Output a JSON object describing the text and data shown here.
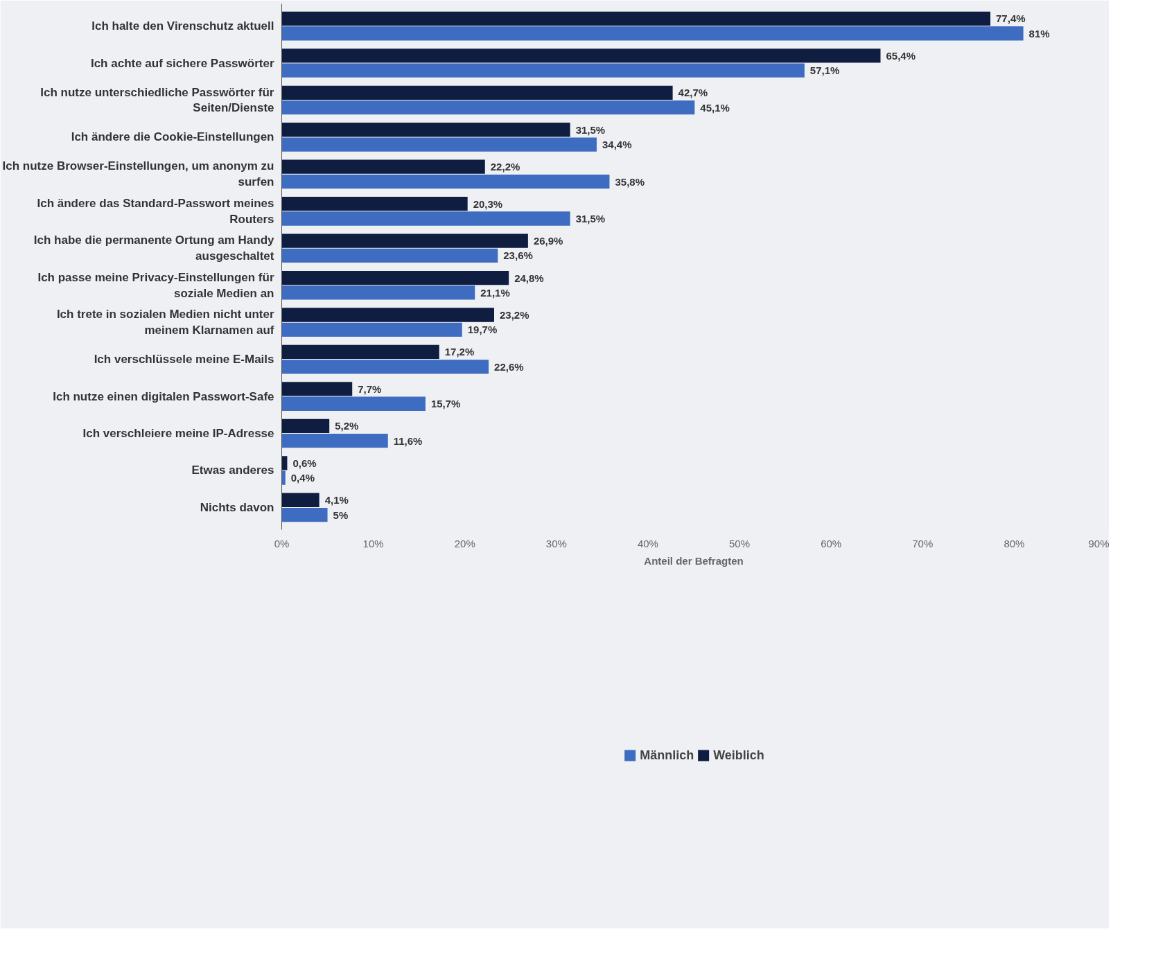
{
  "chart_data": {
    "type": "bar",
    "orientation": "horizontal",
    "xlabel": "Anteil der Befragten",
    "categories": [
      "Ich halte den Virenschutz aktuell",
      "Ich achte auf sichere Passwörter",
      "Ich nutze unterschiedliche Passwörter für Seiten/Dienste",
      "Ich ändere die Cookie-Einstellungen",
      "Ich nutze Browser-Einstellungen, um anonym zu surfen",
      "Ich ändere das Standard-Passwort meines Routers",
      "Ich habe die permanente Ortung am Handy ausgeschaltet",
      "Ich passe meine Privacy-Einstellungen für soziale Medien an",
      "Ich trete in sozialen Medien nicht unter meinem Klarnamen auf",
      "Ich verschlüssele meine E-Mails",
      "Ich nutze einen digitalen Passwort-Safe",
      "Ich verschleiere meine IP-Adresse",
      "Etwas anderes",
      "Nichts davon"
    ],
    "series": [
      {
        "name": "Männlich",
        "color": "#3d6cc0",
        "values": [
          81,
          57.1,
          45.1,
          34.4,
          35.8,
          31.5,
          23.6,
          21.1,
          19.7,
          22.6,
          15.7,
          11.6,
          0.4,
          5
        ],
        "value_labels": [
          "81%",
          "57,1%",
          "45,1%",
          "34,4%",
          "35,8%",
          "31,5%",
          "23,6%",
          "21,1%",
          "19,7%",
          "22,6%",
          "15,7%",
          "11,6%",
          "0,4%",
          "5%"
        ]
      },
      {
        "name": "Weiblich",
        "color": "#0e1d40",
        "values": [
          77.4,
          65.4,
          42.7,
          31.5,
          22.2,
          20.3,
          26.9,
          24.8,
          23.2,
          17.2,
          7.7,
          5.2,
          0.6,
          4.1
        ],
        "value_labels": [
          "77,4%",
          "65,4%",
          "42,7%",
          "31,5%",
          "22,2%",
          "20,3%",
          "26,9%",
          "24,8%",
          "23,2%",
          "17,2%",
          "7,7%",
          "5,2%",
          "0,6%",
          "4,1%"
        ]
      }
    ],
    "xlim": [
      0,
      90
    ],
    "xticks": [
      {
        "value": 0,
        "label": "0%"
      },
      {
        "value": 10,
        "label": "10%"
      },
      {
        "value": 20,
        "label": "20%"
      },
      {
        "value": 30,
        "label": "30%"
      },
      {
        "value": 40,
        "label": "40%"
      },
      {
        "value": 50,
        "label": "50%"
      },
      {
        "value": 60,
        "label": "60%"
      },
      {
        "value": 70,
        "label": "70%"
      },
      {
        "value": 80,
        "label": "80%"
      },
      {
        "value": 90,
        "label": "90%"
      }
    ],
    "legend": "bottom",
    "grid": false
  }
}
